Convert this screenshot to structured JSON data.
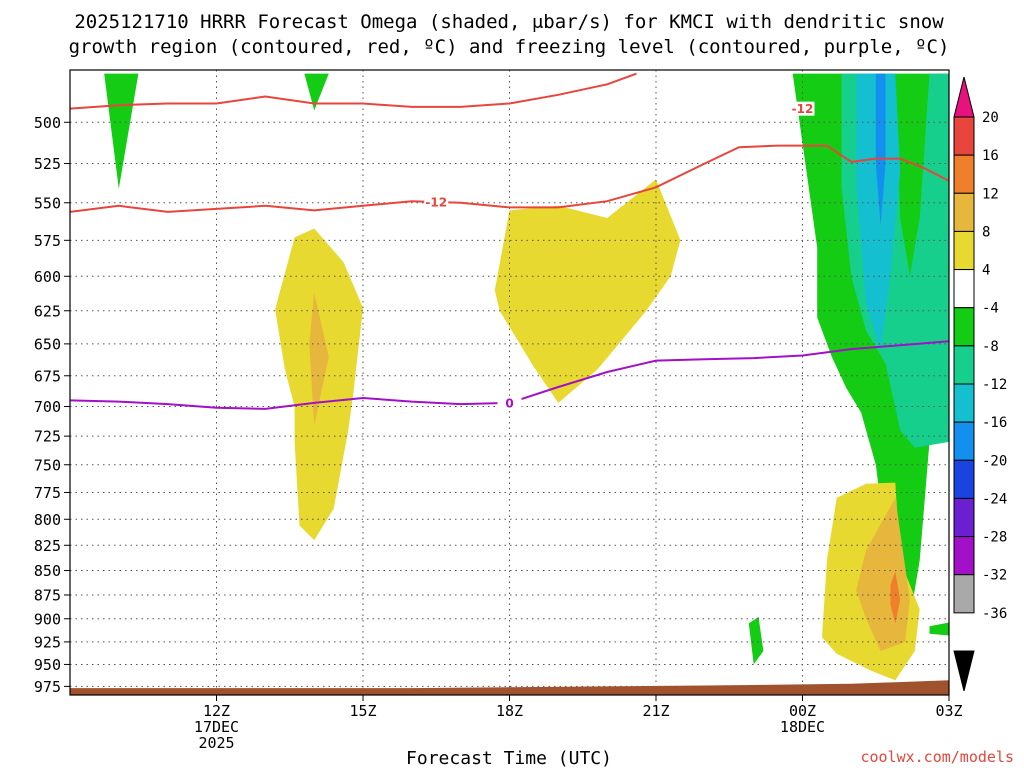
{
  "title_lines": [
    "2025121710 HRRR Forecast Omega (shaded, μbar/s) for KMCI with dendritic snow",
    "growth region (contoured, red, ºC) and freezing level (contoured, purple, ºC)"
  ],
  "credit": "coolwx.com/models",
  "credit_color": "#e8453c",
  "chart_data": {
    "type": "time-height cross section",
    "xlabel": "Forecast Time (UTC)",
    "ylabel": "",
    "x_range_hours_from_12Z": [
      -3.0,
      15.0
    ],
    "y_range_hPa": [
      470,
      985
    ],
    "y_scale": "log",
    "y_inverted": true,
    "grid": true,
    "x_ticks": [
      {
        "hour": 0,
        "lines": [
          "12Z",
          "17DEC",
          "2025"
        ]
      },
      {
        "hour": 3,
        "lines": [
          "15Z"
        ]
      },
      {
        "hour": 6,
        "lines": [
          "18Z"
        ]
      },
      {
        "hour": 9,
        "lines": [
          "21Z"
        ]
      },
      {
        "hour": 12,
        "lines": [
          "00Z",
          "18DEC"
        ]
      },
      {
        "hour": 15,
        "lines": [
          "03Z"
        ]
      }
    ],
    "y_ticks": [
      500,
      525,
      550,
      575,
      600,
      625,
      650,
      675,
      700,
      725,
      750,
      775,
      800,
      825,
      850,
      875,
      900,
      925,
      950,
      975
    ],
    "colorbar": {
      "levels": [
        20,
        16,
        12,
        8,
        4,
        -4,
        -8,
        -12,
        -16,
        -20,
        -24,
        -28,
        -32,
        -36
      ],
      "colors": [
        "#e6e6e6",
        "#e8453c",
        "#f07f2c",
        "#e7b63d",
        "#e7d92f",
        "#ffffff",
        "#13cc13",
        "#17cf8c",
        "#14bfcf",
        "#138ff0",
        "#1a44e2",
        "#6a1fd0",
        "#a210c8",
        "#a9a9a9",
        "#000000"
      ],
      "top_triangle_color": "#e8127e",
      "bottom_triangle_color": "#000000"
    },
    "shaded_regions": [
      {
        "value_range": [
          -8,
          -4
        ],
        "color": "#13cc13",
        "points": [
          [
            -2.3,
            472
          ],
          [
            -1.6,
            472
          ],
          [
            -2.0,
            541
          ],
          [
            -2.3,
            472
          ]
        ]
      },
      {
        "value_range": [
          -8,
          -4
        ],
        "color": "#13cc13",
        "points": [
          [
            1.8,
            472
          ],
          [
            2.3,
            472
          ],
          [
            2.0,
            493
          ],
          [
            1.8,
            472
          ]
        ]
      },
      {
        "value_range": [
          4,
          8
        ],
        "color": "#e7d92f",
        "points": [
          [
            1.2,
            624
          ],
          [
            1.6,
            573
          ],
          [
            2.0,
            567
          ],
          [
            2.6,
            590
          ],
          [
            3.0,
            623
          ],
          [
            2.8,
            690
          ],
          [
            2.7,
            720
          ],
          [
            2.4,
            790
          ],
          [
            2.0,
            820
          ],
          [
            1.7,
            806
          ],
          [
            1.6,
            730
          ],
          [
            1.6,
            700
          ],
          [
            1.4,
            670
          ],
          [
            1.2,
            624
          ]
        ]
      },
      {
        "value_range": [
          8,
          12
        ],
        "color": "#e7b63d",
        "points": [
          [
            1.9,
            650
          ],
          [
            2.0,
            612
          ],
          [
            2.3,
            660
          ],
          [
            2.0,
            716
          ],
          [
            1.9,
            650
          ]
        ]
      },
      {
        "value_range": [
          4,
          8
        ],
        "color": "#e7d92f",
        "points": [
          [
            5.7,
            610
          ],
          [
            6.0,
            555
          ],
          [
            7.0,
            552
          ],
          [
            8.0,
            560
          ],
          [
            9.0,
            535
          ],
          [
            9.5,
            575
          ],
          [
            9.3,
            600
          ],
          [
            8.8,
            625
          ],
          [
            7.8,
            670
          ],
          [
            7.0,
            697
          ],
          [
            6.5,
            668
          ],
          [
            5.8,
            625
          ],
          [
            5.7,
            610
          ]
        ]
      },
      {
        "value_range": [
          -8,
          -4
        ],
        "color": "#13cc13",
        "points": [
          [
            11.8,
            472
          ],
          [
            15.0,
            472
          ],
          [
            14.8,
            590
          ],
          [
            14.6,
            730
          ],
          [
            14.4,
            840
          ],
          [
            14.2,
            900
          ],
          [
            13.9,
            922
          ],
          [
            13.8,
            860
          ],
          [
            13.5,
            750
          ],
          [
            13.2,
            705
          ],
          [
            12.9,
            685
          ],
          [
            12.6,
            660
          ],
          [
            12.3,
            630
          ],
          [
            12.3,
            580
          ],
          [
            11.8,
            472
          ]
        ]
      },
      {
        "value_range": [
          -8,
          -4
        ],
        "color": "#13cc13",
        "points": [
          [
            14.6,
            908
          ],
          [
            15.0,
            904
          ],
          [
            15.0,
            918
          ],
          [
            14.6,
            916
          ],
          [
            14.6,
            908
          ]
        ]
      },
      {
        "value_range": [
          -12,
          -8
        ],
        "color": "#17cf8c",
        "points": [
          [
            12.8,
            472
          ],
          [
            13.9,
            472
          ],
          [
            14.0,
            560
          ],
          [
            14.2,
            600
          ],
          [
            14.4,
            560
          ],
          [
            14.6,
            472
          ],
          [
            15.0,
            472
          ],
          [
            15.0,
            730
          ],
          [
            14.3,
            735
          ],
          [
            14.0,
            720
          ],
          [
            13.7,
            665
          ],
          [
            13.3,
            640
          ],
          [
            13.0,
            600
          ],
          [
            12.8,
            540
          ],
          [
            12.8,
            472
          ]
        ]
      },
      {
        "value_range": [
          -16,
          -12
        ],
        "color": "#14bfcf",
        "points": [
          [
            13.1,
            472
          ],
          [
            13.9,
            472
          ],
          [
            14.0,
            530
          ],
          [
            13.8,
            600
          ],
          [
            13.6,
            655
          ],
          [
            13.3,
            620
          ],
          [
            13.1,
            540
          ],
          [
            13.1,
            472
          ]
        ]
      },
      {
        "value_range": [
          -20,
          -16
        ],
        "color": "#138ff0",
        "points": [
          [
            13.5,
            472
          ],
          [
            13.7,
            472
          ],
          [
            13.7,
            525
          ],
          [
            13.6,
            565
          ],
          [
            13.5,
            525
          ],
          [
            13.5,
            472
          ]
        ]
      },
      {
        "value_range": [
          -8,
          -4
        ],
        "color": "#13cc13",
        "points": [
          [
            10.9,
            905
          ],
          [
            11.1,
            898
          ],
          [
            11.2,
            935
          ],
          [
            11.0,
            950
          ],
          [
            10.9,
            905
          ]
        ]
      },
      {
        "value_range": [
          4,
          8
        ],
        "color": "#e7d92f",
        "points": [
          [
            12.7,
            780
          ],
          [
            13.3,
            767
          ],
          [
            13.9,
            766
          ],
          [
            14.0,
            840
          ],
          [
            14.4,
            890
          ],
          [
            14.3,
            935
          ],
          [
            13.9,
            968
          ],
          [
            13.4,
            957
          ],
          [
            12.7,
            938
          ],
          [
            12.4,
            920
          ],
          [
            12.5,
            840
          ],
          [
            12.7,
            780
          ]
        ]
      },
      {
        "value_range": [
          8,
          12
        ],
        "color": "#e7b63d",
        "points": [
          [
            13.3,
            830
          ],
          [
            13.9,
            780
          ],
          [
            14.2,
            880
          ],
          [
            14.1,
            925
          ],
          [
            13.6,
            935
          ],
          [
            13.3,
            900
          ],
          [
            13.1,
            870
          ],
          [
            13.3,
            830
          ]
        ]
      },
      {
        "value_range": [
          12,
          16
        ],
        "color": "#f07f2c",
        "points": [
          [
            13.8,
            865
          ],
          [
            13.9,
            851
          ],
          [
            14.0,
            880
          ],
          [
            13.9,
            905
          ],
          [
            13.8,
            885
          ],
          [
            13.8,
            865
          ]
        ]
      }
    ],
    "contours": [
      {
        "name": "",
        "color": "#e8453c",
        "label": "-12",
        "label_hour": 4.5,
        "points": [
          [
            -3.0,
            556
          ],
          [
            -2.0,
            552
          ],
          [
            -1.0,
            556
          ],
          [
            0.0,
            554
          ],
          [
            1.0,
            552
          ],
          [
            2.0,
            555
          ],
          [
            3.0,
            552
          ],
          [
            4.0,
            549
          ],
          [
            5.0,
            550
          ],
          [
            6.0,
            553
          ],
          [
            7.0,
            553
          ],
          [
            8.0,
            549
          ],
          [
            9.0,
            540
          ],
          [
            10.0,
            525
          ],
          [
            10.7,
            515
          ],
          [
            11.5,
            514
          ],
          [
            12.0,
            514
          ],
          [
            12.5,
            514
          ],
          [
            13.0,
            524
          ],
          [
            13.5,
            522
          ],
          [
            14.0,
            522
          ],
          [
            14.5,
            528
          ],
          [
            15.0,
            536
          ]
        ]
      },
      {
        "name": "",
        "color": "#e8453c",
        "label": "-12",
        "label_hour": 12.0,
        "points": [
          [
            -3.0,
            492
          ],
          [
            -2.0,
            490
          ],
          [
            -1.0,
            489
          ],
          [
            0.0,
            489
          ],
          [
            1.0,
            485
          ],
          [
            2.0,
            489
          ],
          [
            3.0,
            489
          ],
          [
            4.0,
            491
          ],
          [
            5.0,
            491
          ],
          [
            6.0,
            489
          ],
          [
            7.0,
            484
          ],
          [
            8.0,
            478
          ],
          [
            8.6,
            472
          ]
        ]
      },
      {
        "name": "",
        "color": "#a210c8",
        "label": "0",
        "label_hour": 6.0,
        "points": [
          [
            -3.0,
            695
          ],
          [
            -2.0,
            696
          ],
          [
            -1.0,
            698
          ],
          [
            0.0,
            701
          ],
          [
            1.0,
            702
          ],
          [
            2.0,
            697
          ],
          [
            3.0,
            693
          ],
          [
            4.0,
            696
          ],
          [
            5.0,
            698
          ],
          [
            6.0,
            697
          ],
          [
            7.0,
            684
          ],
          [
            8.0,
            672
          ],
          [
            9.0,
            663
          ],
          [
            10.0,
            662
          ],
          [
            11.0,
            661
          ],
          [
            12.0,
            659
          ],
          [
            13.0,
            654
          ],
          [
            14.0,
            651
          ],
          [
            15.0,
            648
          ]
        ]
      }
    ],
    "terrain": {
      "color": "#a0522d",
      "points": [
        [
          -3.0,
          977
        ],
        [
          4.0,
          977
        ],
        [
          10.0,
          974
        ],
        [
          13.0,
          972
        ],
        [
          15.0,
          968
        ]
      ]
    }
  }
}
